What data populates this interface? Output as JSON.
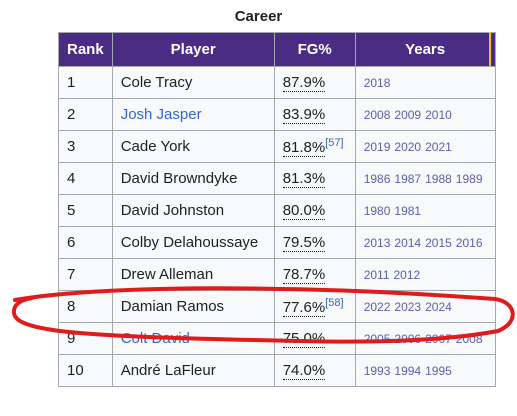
{
  "caption": "Career",
  "headers": [
    "Rank",
    "Player",
    "FG%",
    "Years"
  ],
  "rows": [
    {
      "rank": "1",
      "player": "Cole Tracy",
      "player_link": false,
      "fg": "87.9%",
      "ref": "",
      "years": [
        "2018"
      ]
    },
    {
      "rank": "2",
      "player": "Josh Jasper",
      "player_link": true,
      "fg": "83.9%",
      "ref": "",
      "years": [
        "2008",
        "2009",
        "2010"
      ]
    },
    {
      "rank": "3",
      "player": "Cade York",
      "player_link": false,
      "fg": "81.8%",
      "ref": "[57]",
      "years": [
        "2019",
        "2020",
        "2021"
      ]
    },
    {
      "rank": "4",
      "player": "David Browndyke",
      "player_link": false,
      "fg": "81.3%",
      "ref": "",
      "years": [
        "1986",
        "1987",
        "1988",
        "1989"
      ]
    },
    {
      "rank": "5",
      "player": "David Johnston",
      "player_link": false,
      "fg": "80.0%",
      "ref": "",
      "years": [
        "1980",
        "1981"
      ]
    },
    {
      "rank": "6",
      "player": "Colby Delahoussaye",
      "player_link": false,
      "fg": "79.5%",
      "ref": "",
      "years": [
        "2013",
        "2014",
        "2015",
        "2016"
      ]
    },
    {
      "rank": "7",
      "player": "Drew Alleman",
      "player_link": false,
      "fg": "78.7%",
      "ref": "",
      "years": [
        "2011",
        "2012"
      ]
    },
    {
      "rank": "8",
      "player": "Damian Ramos",
      "player_link": false,
      "fg": "77.6%",
      "ref": "[58]",
      "years": [
        "2022",
        "2023",
        "2024"
      ]
    },
    {
      "rank": "9",
      "player": "Colt David",
      "player_link": true,
      "fg": "75.0%",
      "ref": "",
      "years": [
        "2005",
        "2006",
        "2007",
        "2008"
      ]
    },
    {
      "rank": "10",
      "player": "André LaFleur",
      "player_link": false,
      "fg": "74.0%",
      "ref": "",
      "years": [
        "1993",
        "1994",
        "1995"
      ]
    }
  ],
  "colors": {
    "header_bg": "#4b2c85",
    "header_text": "#ffffff",
    "link": "#3366cc",
    "year_text": "#5a5fb0",
    "annotation": "#e01b1b",
    "accent_edge": "#f4c11a"
  }
}
